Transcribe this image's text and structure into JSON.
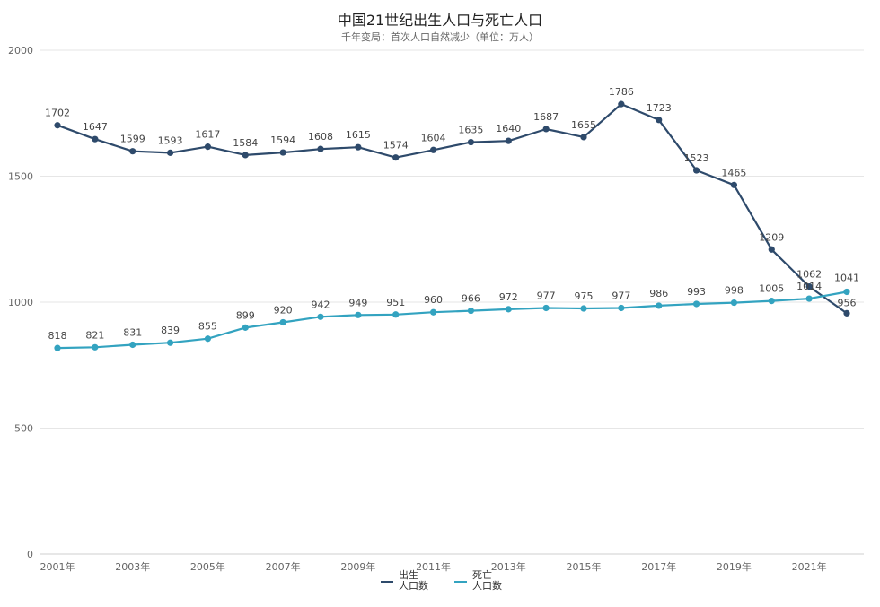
{
  "chart_data": {
    "type": "line",
    "title": "中国21世纪出生人口与死亡人口",
    "subtitle": "千年变局：首次人口自然减少（单位：万人）",
    "ylim": [
      0,
      2000
    ],
    "yticks": [
      0,
      500,
      1000,
      1500,
      2000
    ],
    "x": [
      "2001",
      "2002",
      "2003",
      "2004",
      "2005",
      "2006",
      "2007",
      "2008",
      "2009",
      "2010",
      "2011",
      "2012",
      "2013",
      "2014",
      "2015",
      "2016",
      "2017",
      "2018",
      "2019",
      "2020",
      "2021",
      "2022"
    ],
    "xtick_labels": [
      "2001年",
      "2003年",
      "2005年",
      "2007年",
      "2009年",
      "2011年",
      "2013年",
      "2015年",
      "2017年",
      "2019年",
      "2021年"
    ],
    "grid": true,
    "legend_position": "bottom-center",
    "series": [
      {
        "name_line1": "出生",
        "name_line2": "人口数",
        "color": "#2e4a6b",
        "values": [
          1702,
          1647,
          1599,
          1593,
          1617,
          1584,
          1594,
          1608,
          1615,
          1574,
          1604,
          1635,
          1640,
          1687,
          1655,
          1786,
          1723,
          1523,
          1465,
          1209,
          1062,
          956
        ]
      },
      {
        "name_line1": "死亡",
        "name_line2": "人口数",
        "color": "#33a3c0",
        "values": [
          818,
          821,
          831,
          839,
          855,
          899,
          920,
          942,
          949,
          951,
          960,
          966,
          972,
          977,
          975,
          977,
          986,
          993,
          998,
          1005,
          1014,
          1041
        ]
      }
    ]
  }
}
